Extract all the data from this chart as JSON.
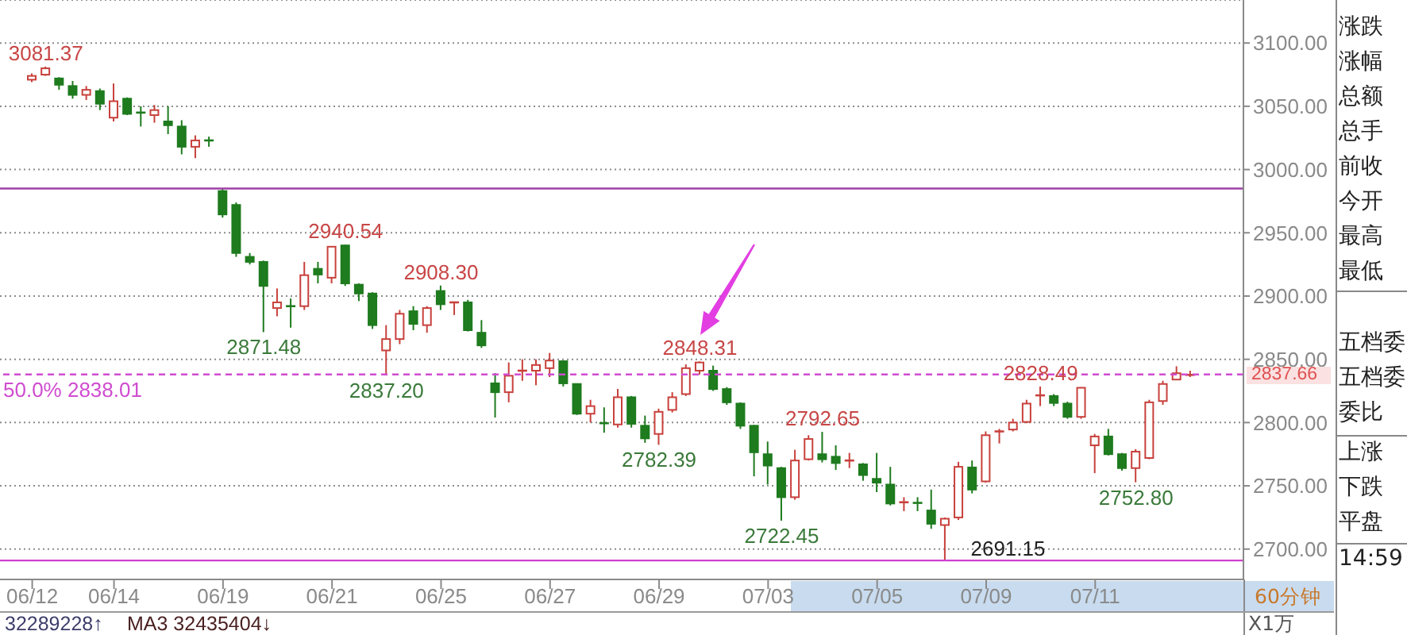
{
  "chart_data": [
    {
      "type": "candlestick",
      "categories": [
        "06/12",
        null,
        null,
        null,
        null,
        null,
        "06/14",
        null,
        null,
        null,
        null,
        null,
        null,
        null,
        "06/19",
        null,
        null,
        null,
        null,
        null,
        null,
        null,
        "06/21",
        null,
        null,
        null,
        null,
        null,
        null,
        null,
        "06/25",
        null,
        null,
        null,
        null,
        null,
        null,
        null,
        "06/27",
        null,
        null,
        null,
        null,
        null,
        null,
        null,
        "06/29",
        null,
        null,
        null,
        null,
        null,
        null,
        null,
        "07/03",
        null,
        null,
        null,
        null,
        null,
        null,
        null,
        "07/05",
        null,
        null,
        null,
        null,
        null,
        null,
        null,
        "07/09",
        null,
        null,
        null,
        null,
        null,
        null,
        null,
        "07/11",
        null,
        null,
        null,
        null,
        null,
        null,
        null
      ],
      "ohlc": [
        [
          3071,
          3076,
          3069,
          3074
        ],
        [
          3075,
          3081.37,
          3074,
          3080
        ],
        [
          3072,
          3073,
          3063,
          3067
        ],
        [
          3066,
          3070,
          3056,
          3059
        ],
        [
          3059,
          3066,
          3055,
          3063
        ],
        [
          3062,
          3064,
          3047,
          3052
        ],
        [
          3041,
          3068,
          3038,
          3054
        ],
        [
          3056,
          3057,
          3043,
          3044
        ],
        [
          3045.5,
          3050,
          3034,
          3045
        ],
        [
          3043,
          3051,
          3037,
          3047
        ],
        [
          3038,
          3050,
          3028,
          3035
        ],
        [
          3034,
          3039,
          3012,
          3018
        ],
        [
          3018,
          3027,
          3009,
          3023
        ],
        [
          3023.5,
          3026,
          3018,
          3023
        ],
        [
          2983,
          2985,
          2962,
          2964.5
        ],
        [
          2972,
          2974,
          2931,
          2934
        ],
        [
          2931,
          2934,
          2925,
          2927
        ],
        [
          2927,
          2928,
          2871.48,
          2908
        ],
        [
          2890.5,
          2906,
          2884,
          2895
        ],
        [
          2892.5,
          2898,
          2875,
          2892
        ],
        [
          2892,
          2927,
          2889,
          2916.5
        ],
        [
          2921.5,
          2927,
          2910,
          2917
        ],
        [
          2914.5,
          2939.5,
          2910,
          2939
        ],
        [
          2940,
          2940.54,
          2908,
          2910
        ],
        [
          2909,
          2910,
          2896,
          2902
        ],
        [
          2902,
          2903,
          2874,
          2877
        ],
        [
          2857,
          2877,
          2837.2,
          2866
        ],
        [
          2866,
          2889,
          2862,
          2886
        ],
        [
          2888,
          2892,
          2873,
          2878
        ],
        [
          2877,
          2892,
          2871,
          2890.5
        ],
        [
          2904,
          2908.3,
          2889,
          2893.5
        ],
        [
          2894.5,
          2895,
          2885,
          2895
        ],
        [
          2895,
          2897,
          2872,
          2873
        ],
        [
          2871,
          2881,
          2859,
          2861
        ],
        [
          2831,
          2839,
          2804,
          2824
        ],
        [
          2824,
          2847.5,
          2816,
          2837
        ],
        [
          2840.5,
          2850,
          2833,
          2841
        ],
        [
          2841,
          2850,
          2829.5,
          2845.5
        ],
        [
          2843,
          2855,
          2836,
          2849
        ],
        [
          2848.5,
          2849,
          2828.5,
          2831
        ],
        [
          2830.5,
          2831,
          2806,
          2807
        ],
        [
          2807,
          2818,
          2800,
          2813
        ],
        [
          2800,
          2812,
          2792,
          2799.5
        ],
        [
          2798.5,
          2826.5,
          2796,
          2820
        ],
        [
          2820,
          2821,
          2796,
          2799
        ],
        [
          2797.5,
          2805.5,
          2784,
          2787.5
        ],
        [
          2791,
          2811,
          2782.39,
          2808.5
        ],
        [
          2810,
          2824,
          2808,
          2820
        ],
        [
          2822.5,
          2846,
          2821,
          2843
        ],
        [
          2841,
          2848.31,
          2838,
          2847.5
        ],
        [
          2841,
          2845,
          2825,
          2826.5
        ],
        [
          2826.5,
          2828,
          2814,
          2816
        ],
        [
          2815,
          2816,
          2795,
          2797.5
        ],
        [
          2797.5,
          2798,
          2757.5,
          2776.5
        ],
        [
          2775,
          2785,
          2751,
          2766
        ],
        [
          2764,
          2765,
          2722.45,
          2741
        ],
        [
          2741,
          2778.5,
          2739,
          2770
        ],
        [
          2771,
          2790,
          2770,
          2787
        ],
        [
          2775,
          2792.65,
          2768.5,
          2771
        ],
        [
          2773,
          2782,
          2762.5,
          2768
        ],
        [
          2769.5,
          2776,
          2764,
          2770
        ],
        [
          2767,
          2768,
          2754,
          2758.5
        ],
        [
          2755.5,
          2776,
          2745,
          2752.5
        ],
        [
          2751,
          2765,
          2734.5,
          2736
        ],
        [
          2736.5,
          2741,
          2730,
          2737
        ],
        [
          2737,
          2741,
          2730,
          2736.5
        ],
        [
          2730.5,
          2747,
          2716,
          2720
        ],
        [
          2719,
          2725,
          2691.15,
          2724
        ],
        [
          2725,
          2769,
          2723,
          2765
        ],
        [
          2764.5,
          2770,
          2744,
          2747
        ],
        [
          2753.5,
          2793,
          2752.5,
          2790
        ],
        [
          2792.5,
          2795,
          2783.5,
          2793
        ],
        [
          2794.5,
          2803,
          2793,
          2800
        ],
        [
          2800.5,
          2818,
          2799.5,
          2815
        ],
        [
          2821,
          2828.49,
          2813,
          2821.5
        ],
        [
          2821,
          2822.5,
          2813,
          2815.5
        ],
        [
          2815,
          2816.5,
          2803,
          2804.5
        ],
        [
          2804.5,
          2828,
          2803,
          2827.5
        ],
        [
          2782,
          2791,
          2760,
          2789
        ],
        [
          2789,
          2795,
          2774,
          2775
        ],
        [
          2775,
          2776,
          2762,
          2764
        ],
        [
          2764,
          2779,
          2752.8,
          2777
        ],
        [
          2772,
          2818,
          2771,
          2816
        ],
        [
          2817,
          2833,
          2814,
          2830.5
        ],
        [
          2834,
          2844.5,
          2833.5,
          2839
        ],
        [
          2837.5,
          2841,
          2836,
          2837.66
        ]
      ],
      "colors": [
        "#c8413c",
        "#c8413c",
        "#1e7b1e",
        "#1e7b1e",
        "#c8413c",
        "#1e7b1e",
        "#c8413c",
        "#1e7b1e",
        "#1e7b1e",
        "#c8413c",
        "#1e7b1e",
        "#1e7b1e",
        "#c8413c",
        "#1e7b1e",
        "#1e7b1e",
        "#1e7b1e",
        "#1e7b1e",
        "#1e7b1e",
        "#c8413c",
        "#1e7b1e",
        "#c8413c",
        "#1e7b1e",
        "#c8413c",
        "#1e7b1e",
        "#1e7b1e",
        "#1e7b1e",
        "#c8413c",
        "#c8413c",
        "#1e7b1e",
        "#c8413c",
        "#1e7b1e",
        "#c8413c",
        "#1e7b1e",
        "#1e7b1e",
        "#1e7b1e",
        "#c8413c",
        "#c8413c",
        "#c8413c",
        "#c8413c",
        "#1e7b1e",
        "#1e7b1e",
        "#c8413c",
        "#1e7b1e",
        "#c8413c",
        "#1e7b1e",
        "#1e7b1e",
        "#c8413c",
        "#c8413c",
        "#c8413c",
        "#c8413c",
        "#1e7b1e",
        "#1e7b1e",
        "#1e7b1e",
        "#1e7b1e",
        "#1e7b1e",
        "#1e7b1e",
        "#c8413c",
        "#c8413c",
        "#1e7b1e",
        "#1e7b1e",
        "#c8413c",
        "#1e7b1e",
        "#1e7b1e",
        "#1e7b1e",
        "#c8413c",
        "#1e7b1e",
        "#1e7b1e",
        "#c8413c",
        "#c8413c",
        "#1e7b1e",
        "#c8413c",
        "#c8413c",
        "#c8413c",
        "#c8413c",
        "#c8413c",
        "#1e7b1e",
        "#1e7b1e",
        "#c8413c",
        "#c8413c",
        "#1e7b1e",
        "#1e7b1e",
        "#c8413c",
        "#c8413c",
        "#c8413c",
        "#c8413c",
        "#c8413c"
      ],
      "ylim": [
        2676,
        3134
      ],
      "yticks": [
        {
          "value": 2700,
          "label": "2700.00"
        },
        {
          "value": 2750,
          "label": "2750.00"
        },
        {
          "value": 2800,
          "label": "2800.00"
        },
        {
          "value": 2850,
          "label": "2850.00"
        },
        {
          "value": 2900,
          "label": "2900.00"
        },
        {
          "value": 2950,
          "label": "2950.00"
        },
        {
          "value": 3000,
          "label": "3000.00"
        },
        {
          "value": 3050,
          "label": "3050.00"
        },
        {
          "value": 3100,
          "label": "3100.00"
        }
      ],
      "grid": "y",
      "ref_lines": [
        {
          "axis": "y",
          "value": 2985,
          "color": "#a040a8"
        },
        {
          "axis": "y",
          "value": 2838.01,
          "label": "50.0% 2838.01",
          "color": "#d04cd0",
          "line_style": "dashed"
        },
        {
          "axis": "y",
          "value": 2691,
          "color": "#d040d0"
        }
      ],
      "annotations": [
        {
          "text": "3081.37",
          "y": 3081.37
        },
        {
          "text": "2940.54",
          "y": 2940.54
        },
        {
          "text": "2908.30",
          "y": 2908.3
        },
        {
          "text": "2871.48",
          "y": 2871.48
        },
        {
          "text": "2837.20",
          "y": 2837.2
        },
        {
          "text": "2848.31",
          "y": 2848.31
        },
        {
          "text": "2782.39",
          "y": 2782.39
        },
        {
          "text": "2792.65",
          "y": 2792.65
        },
        {
          "text": "2722.45",
          "y": 2722.45
        },
        {
          "text": "2691.15",
          "y": 2691.15
        },
        {
          "text": "2828.49",
          "y": 2828.49
        },
        {
          "text": "2752.80",
          "y": 2752.8
        },
        "2837.66",
        "32289228↑",
        "MA3 32435404↓",
        "60分钟",
        "X1万"
      ]
    },
    {
      "type": "other",
      "annotations": [
        "涨跌",
        "涨幅",
        "总额",
        "总手",
        "前收",
        "今开",
        "最高",
        "最低",
        "五档委",
        "五档委",
        "委比",
        "上涨",
        "下跌",
        "平盘",
        "14:59"
      ]
    }
  ]
}
